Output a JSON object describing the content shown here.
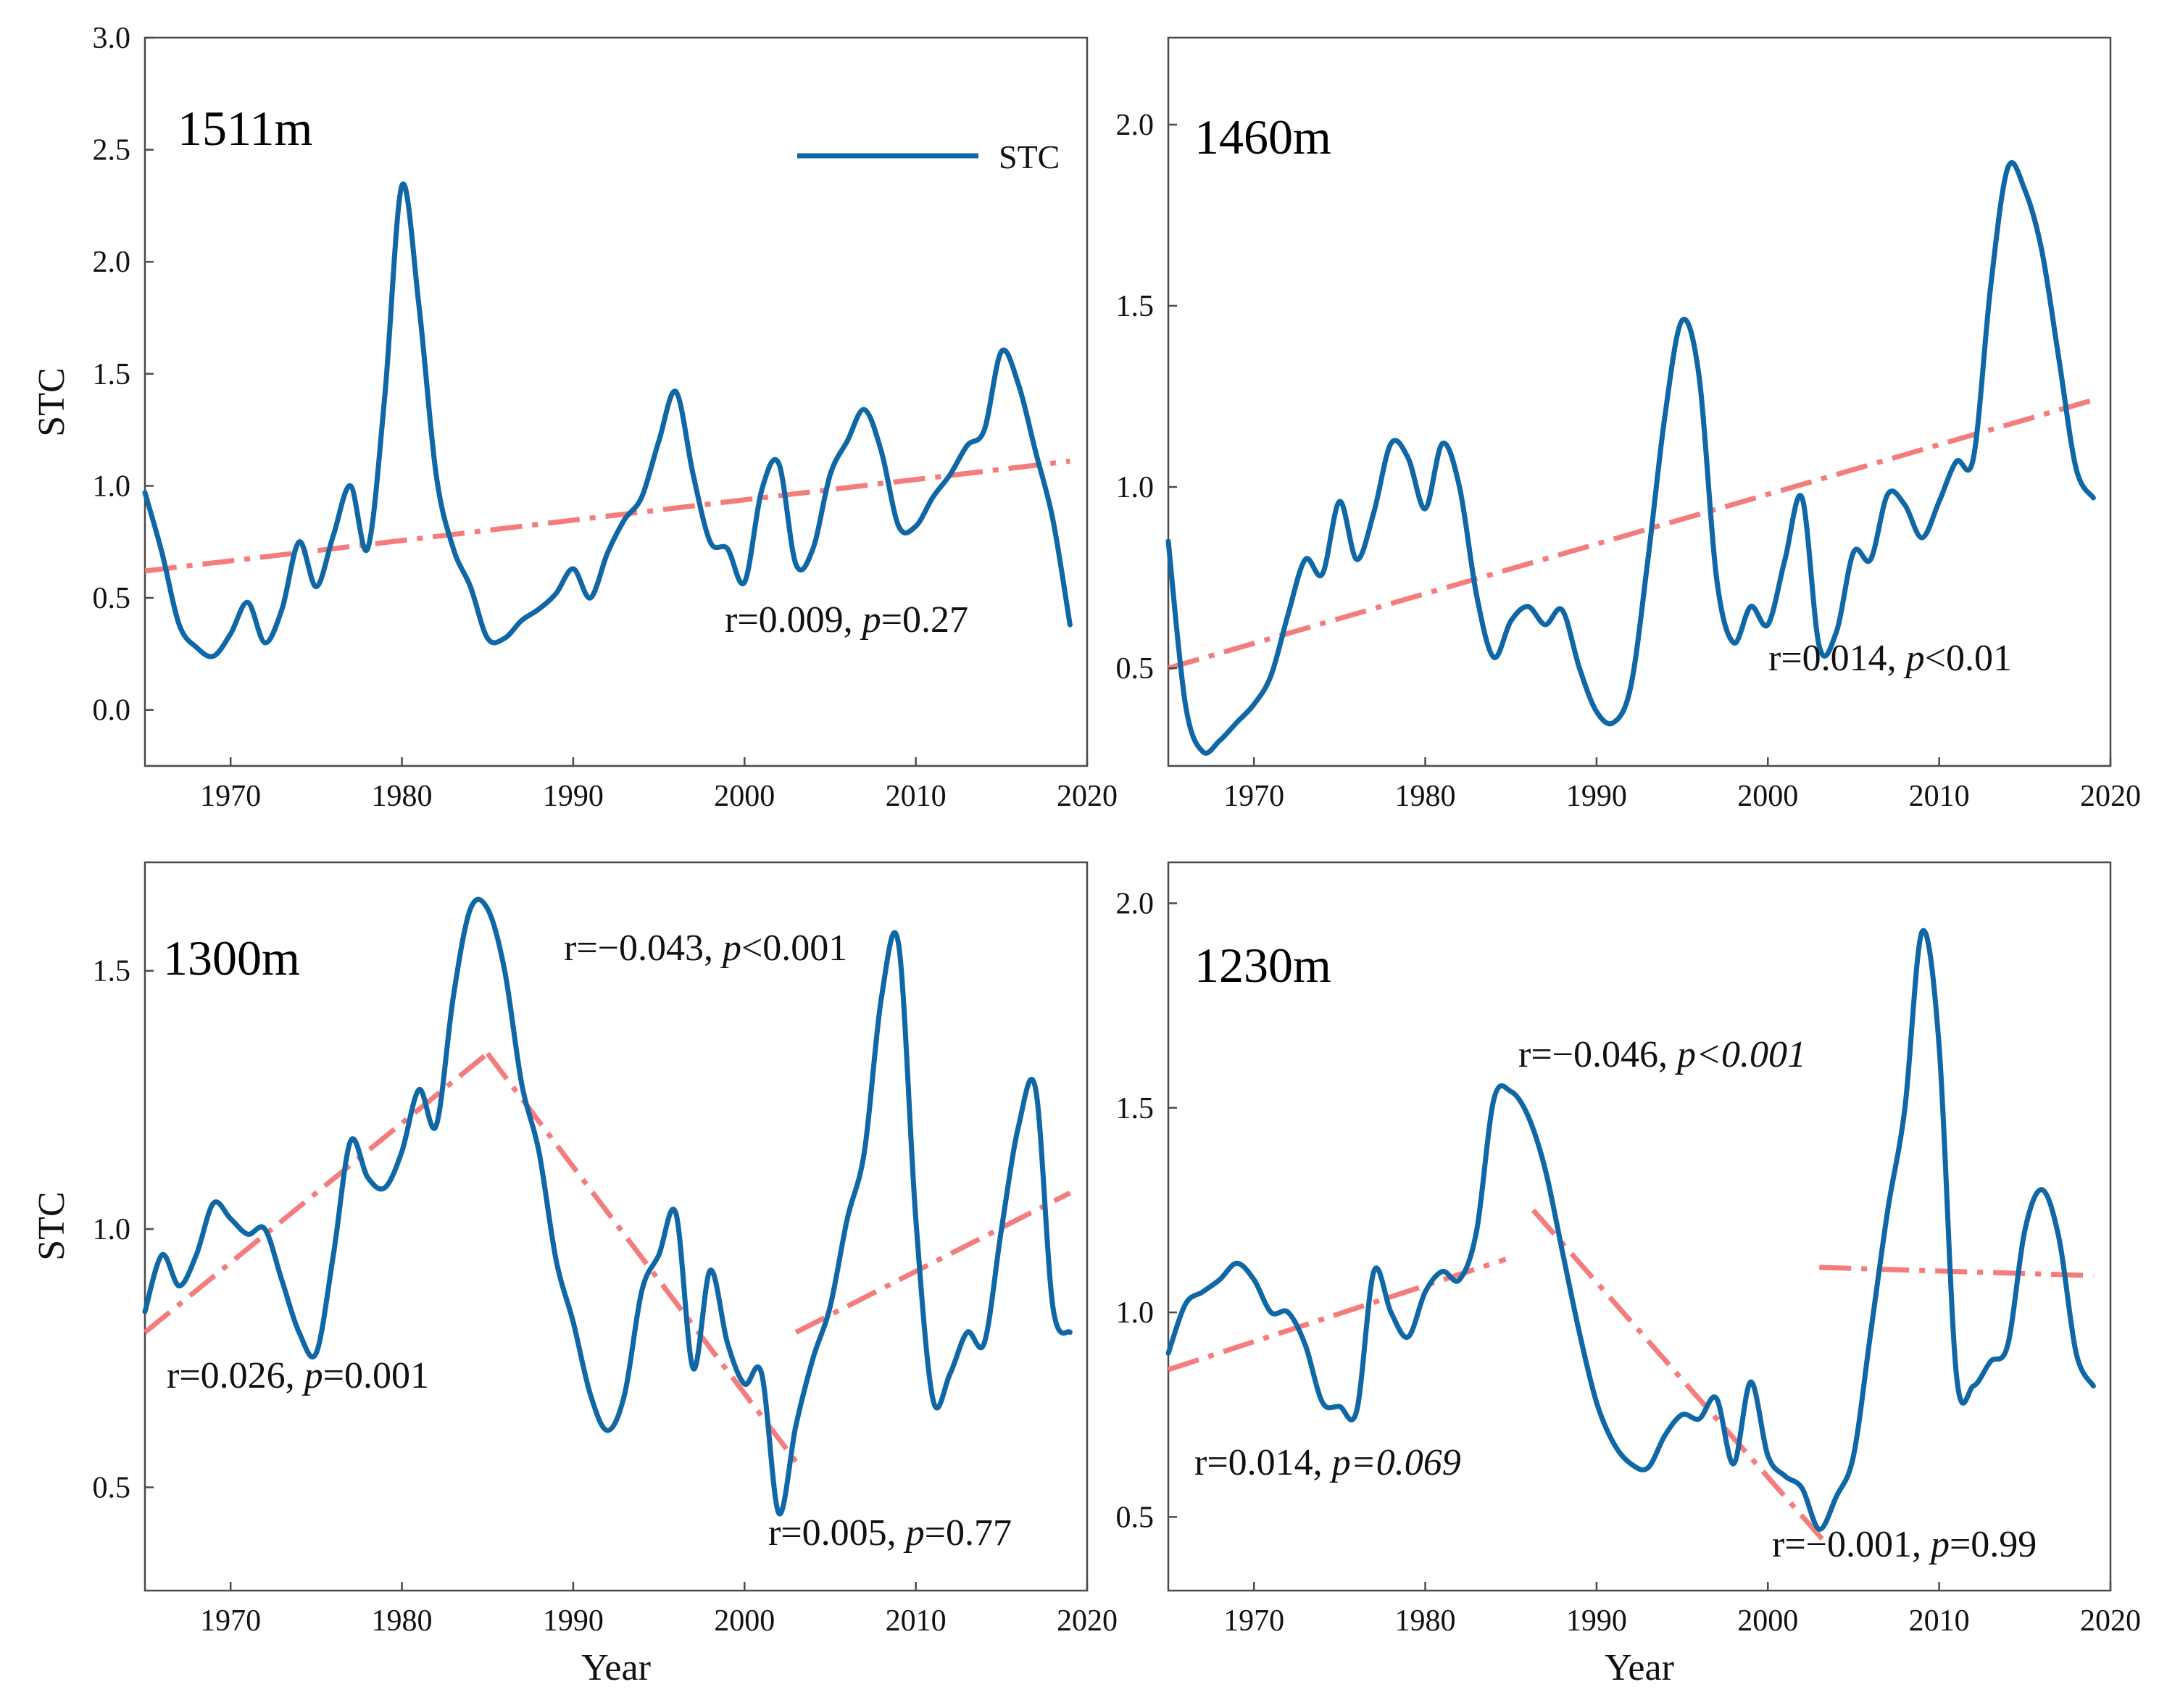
{
  "colors": {
    "stc": "#0f67a6",
    "trend": "#f47c7c",
    "axis": "#4a4a4a"
  },
  "chart_data": [
    {
      "type": "line",
      "title": "1511m",
      "xlabel": "",
      "ylabel": "STC",
      "xlim": [
        1965,
        2020
      ],
      "ylim": [
        -0.25,
        3.0
      ],
      "xticks": [
        1970,
        1980,
        1990,
        2000,
        2010,
        2020
      ],
      "yticks": [
        0.0,
        0.5,
        1.0,
        1.5,
        2.0,
        2.5,
        3.0
      ],
      "legend": {
        "label": "STC",
        "position": "top-right"
      },
      "series": [
        {
          "name": "STC",
          "x": [
            1965,
            1966,
            1967,
            1968,
            1969,
            1970,
            1971,
            1972,
            1973,
            1974,
            1975,
            1976,
            1977,
            1978,
            1979,
            1980,
            1981,
            1982,
            1983,
            1984,
            1985,
            1986,
            1987,
            1988,
            1989,
            1990,
            1991,
            1992,
            1993,
            1994,
            1995,
            1996,
            1997,
            1998,
            1999,
            2000,
            2001,
            2002,
            2003,
            2004,
            2005,
            2006,
            2007,
            2008,
            2009,
            2010,
            2011,
            2012,
            2013,
            2014,
            2015,
            2016,
            2017,
            2018,
            2019
          ],
          "y": [
            0.97,
            0.7,
            0.38,
            0.28,
            0.24,
            0.34,
            0.48,
            0.3,
            0.45,
            0.75,
            0.55,
            0.78,
            1.0,
            0.72,
            1.4,
            2.34,
            1.8,
            1.05,
            0.72,
            0.55,
            0.32,
            0.32,
            0.4,
            0.45,
            0.52,
            0.63,
            0.5,
            0.7,
            0.85,
            0.95,
            1.2,
            1.42,
            1.05,
            0.75,
            0.72,
            0.57,
            0.98,
            1.1,
            0.65,
            0.72,
            1.05,
            1.2,
            1.34,
            1.15,
            0.82,
            0.82,
            0.95,
            1.05,
            1.18,
            1.25,
            1.6,
            1.45,
            1.15,
            0.85,
            0.38
          ]
        }
      ],
      "trends": [
        {
          "x": [
            1965,
            2019
          ],
          "y": [
            0.62,
            1.11
          ]
        }
      ],
      "annotations": [
        {
          "r": "r=0.009, ",
          "p_symbol": "p",
          "p_value": "=0.27"
        }
      ]
    },
    {
      "type": "line",
      "title": "1460m",
      "xlabel": "",
      "ylabel": "",
      "xlim": [
        1965,
        2020
      ],
      "ylim": [
        0.23,
        2.24
      ],
      "xticks": [
        1970,
        1980,
        1990,
        2000,
        2010,
        2020
      ],
      "yticks": [
        0.5,
        1.0,
        1.5,
        2.0
      ],
      "series": [
        {
          "name": "STC",
          "x": [
            1965,
            1966,
            1967,
            1968,
            1969,
            1970,
            1971,
            1972,
            1973,
            1974,
            1975,
            1976,
            1977,
            1978,
            1979,
            1980,
            1981,
            1982,
            1983,
            1984,
            1985,
            1986,
            1987,
            1988,
            1989,
            1990,
            1991,
            1992,
            1993,
            1994,
            1995,
            1996,
            1997,
            1998,
            1999,
            2000,
            2001,
            2002,
            2003,
            2004,
            2005,
            2006,
            2007,
            2008,
            2009,
            2010,
            2011,
            2012,
            2013,
            2014,
            2015,
            2016,
            2017,
            2018,
            2019
          ],
          "y": [
            0.85,
            0.4,
            0.27,
            0.3,
            0.35,
            0.4,
            0.48,
            0.65,
            0.8,
            0.76,
            0.96,
            0.8,
            0.93,
            1.12,
            1.08,
            0.94,
            1.12,
            1.0,
            0.7,
            0.53,
            0.63,
            0.67,
            0.62,
            0.66,
            0.5,
            0.38,
            0.35,
            0.45,
            0.8,
            1.2,
            1.46,
            1.3,
            0.75,
            0.57,
            0.67,
            0.62,
            0.8,
            0.97,
            0.56,
            0.6,
            0.82,
            0.8,
            0.98,
            0.95,
            0.86,
            0.96,
            1.07,
            1.08,
            1.55,
            1.88,
            1.82,
            1.65,
            1.35,
            1.05,
            0.97
          ]
        }
      ],
      "trends": [
        {
          "x": [
            1965,
            2019
          ],
          "y": [
            0.5,
            1.24
          ]
        }
      ],
      "annotations": [
        {
          "r": "r=0.014, ",
          "p_symbol": "p",
          "p_value": "<0.01"
        }
      ]
    },
    {
      "type": "line",
      "title": "1300m",
      "xlabel": "Year",
      "ylabel": "STC",
      "xlim": [
        1965,
        2020
      ],
      "ylim": [
        0.3,
        1.71
      ],
      "xticks": [
        1970,
        1980,
        1990,
        2000,
        2010,
        2020
      ],
      "yticks": [
        0.5,
        1.0,
        1.5
      ],
      "series": [
        {
          "name": "STC",
          "x": [
            1965,
            1966,
            1967,
            1968,
            1969,
            1970,
            1971,
            1972,
            1973,
            1974,
            1975,
            1976,
            1977,
            1978,
            1979,
            1980,
            1981,
            1982,
            1983,
            1984,
            1985,
            1986,
            1987,
            1988,
            1989,
            1990,
            1991,
            1992,
            1993,
            1994,
            1995,
            1996,
            1997,
            1998,
            1999,
            2000,
            2001,
            2002,
            2003,
            2004,
            2005,
            2006,
            2007,
            2008,
            2009,
            2010,
            2011,
            2012,
            2013,
            2014,
            2015,
            2016,
            2017,
            2018,
            2019
          ],
          "y": [
            0.84,
            0.95,
            0.89,
            0.95,
            1.05,
            1.02,
            0.99,
            1.0,
            0.9,
            0.8,
            0.76,
            0.95,
            1.17,
            1.1,
            1.08,
            1.15,
            1.27,
            1.2,
            1.45,
            1.62,
            1.62,
            1.5,
            1.28,
            1.15,
            0.94,
            0.82,
            0.68,
            0.61,
            0.68,
            0.88,
            0.95,
            1.03,
            0.73,
            0.92,
            0.78,
            0.7,
            0.72,
            0.45,
            0.62,
            0.75,
            0.85,
            1.02,
            1.15,
            1.45,
            1.55,
            1.02,
            0.67,
            0.72,
            0.8,
            0.78,
            1.0,
            1.2,
            1.27,
            0.85,
            0.8
          ]
        }
      ],
      "trends": [
        {
          "x": [
            1965,
            1985
          ],
          "y": [
            0.8,
            1.34
          ]
        },
        {
          "x": [
            1985,
            2003
          ],
          "y": [
            1.34,
            0.55
          ]
        },
        {
          "x": [
            2003,
            2019
          ],
          "y": [
            0.8,
            1.07
          ]
        }
      ],
      "annotations": [
        {
          "r": "r=−0.043, ",
          "p_symbol": "p",
          "p_value": "<0.001"
        },
        {
          "r": "r=0.026, ",
          "p_symbol": "p",
          "p_value": "=0.001"
        },
        {
          "r": "r=0.005, ",
          "p_symbol": "p",
          "p_value": "=0.77"
        }
      ]
    },
    {
      "type": "line",
      "title": "1230m",
      "xlabel": "Year",
      "ylabel": "",
      "xlim": [
        1965,
        2020
      ],
      "ylim": [
        0.32,
        2.1
      ],
      "xticks": [
        1970,
        1980,
        1990,
        2000,
        2010,
        2020
      ],
      "yticks": [
        0.5,
        1.0,
        1.5,
        2.0
      ],
      "series": [
        {
          "name": "STC",
          "x": [
            1965,
            1966,
            1967,
            1968,
            1969,
            1970,
            1971,
            1972,
            1973,
            1974,
            1975,
            1976,
            1977,
            1978,
            1979,
            1980,
            1981,
            1982,
            1983,
            1984,
            1985,
            1986,
            1987,
            1988,
            1989,
            1990,
            1991,
            1992,
            1993,
            1994,
            1995,
            1996,
            1997,
            1998,
            1999,
            2000,
            2001,
            2002,
            2003,
            2004,
            2005,
            2006,
            2007,
            2008,
            2009,
            2010,
            2011,
            2012,
            2013,
            2014,
            2015,
            2016,
            2017,
            2018,
            2019
          ],
          "y": [
            0.9,
            1.02,
            1.05,
            1.08,
            1.12,
            1.08,
            1.0,
            1.0,
            0.92,
            0.78,
            0.77,
            0.76,
            1.1,
            1.0,
            0.94,
            1.05,
            1.1,
            1.08,
            1.2,
            1.52,
            1.54,
            1.48,
            1.35,
            1.15,
            0.95,
            0.78,
            0.68,
            0.63,
            0.62,
            0.7,
            0.75,
            0.74,
            0.79,
            0.63,
            0.83,
            0.65,
            0.6,
            0.57,
            0.47,
            0.55,
            0.65,
            0.95,
            1.25,
            1.5,
            1.93,
            1.65,
            0.85,
            0.82,
            0.88,
            0.92,
            1.2,
            1.3,
            1.18,
            0.9,
            0.82
          ]
        }
      ],
      "trends": [
        {
          "x": [
            1965,
            1984.7
          ],
          "y": [
            0.86,
            1.13
          ]
        },
        {
          "x": [
            1986.3,
            2003.3
          ],
          "y": [
            1.25,
            0.44
          ]
        },
        {
          "x": [
            2003,
            2019
          ],
          "y": [
            1.11,
            1.09
          ]
        }
      ],
      "annotations": [
        {
          "r": "r=−0.046, ",
          "p_symbol": "p<0.001",
          "p_value": ""
        },
        {
          "r": "r=0.014, ",
          "p_symbol": "p=0.069",
          "p_value": ""
        },
        {
          "r": "r=−0.001, ",
          "p_symbol": "p",
          "p_value": "=0.99"
        }
      ]
    }
  ]
}
